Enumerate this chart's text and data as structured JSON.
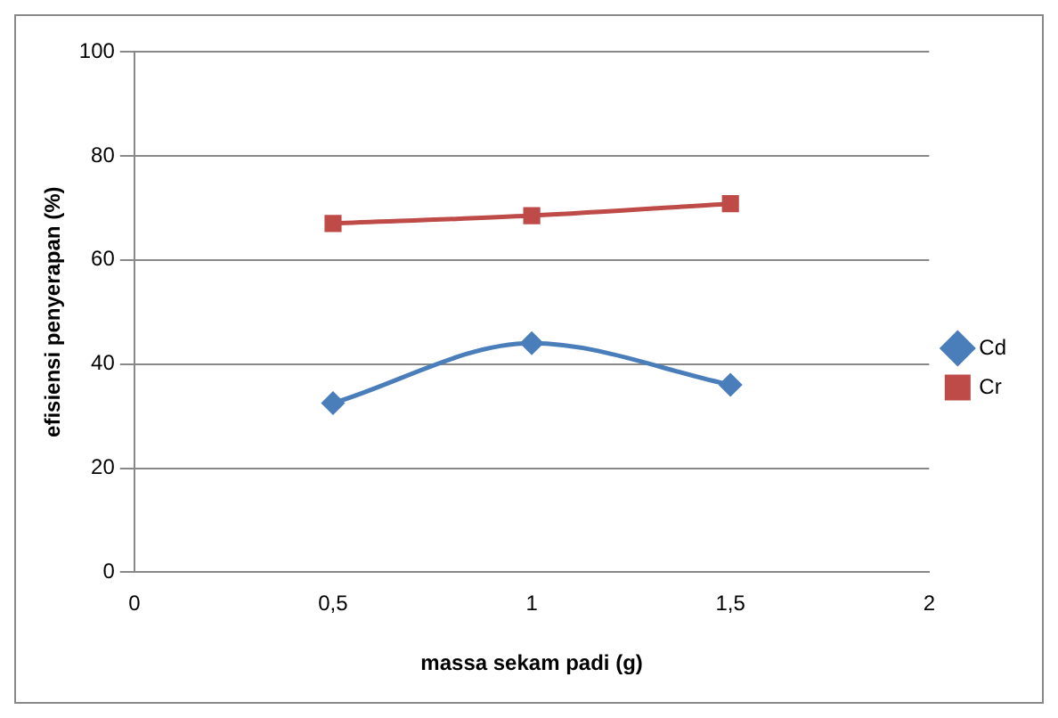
{
  "chart_data": {
    "type": "line",
    "xlabel": "massa sekam padi (g)",
    "ylabel": "efisiensi penyerapan (%)",
    "x": [
      0.5,
      1,
      1.5
    ],
    "series": [
      {
        "name": "Cd",
        "color": "#4a7ebb",
        "values": [
          32.5,
          44,
          36
        ],
        "marker": "diamond"
      },
      {
        "name": "Cr",
        "color": "#be4b48",
        "values": [
          67,
          68.5,
          70.8
        ],
        "marker": "square"
      }
    ],
    "xlim": [
      0,
      2
    ],
    "xticks": [
      0,
      {
        "value": 0.5,
        "label": "0,5"
      },
      1,
      {
        "value": 1.5,
        "label": "1,5"
      },
      2
    ],
    "ylim": [
      0,
      100
    ],
    "yticks": [
      0,
      20,
      40,
      60,
      80,
      100
    ],
    "grid": "y",
    "legend": "right",
    "line_style": "solid"
  }
}
